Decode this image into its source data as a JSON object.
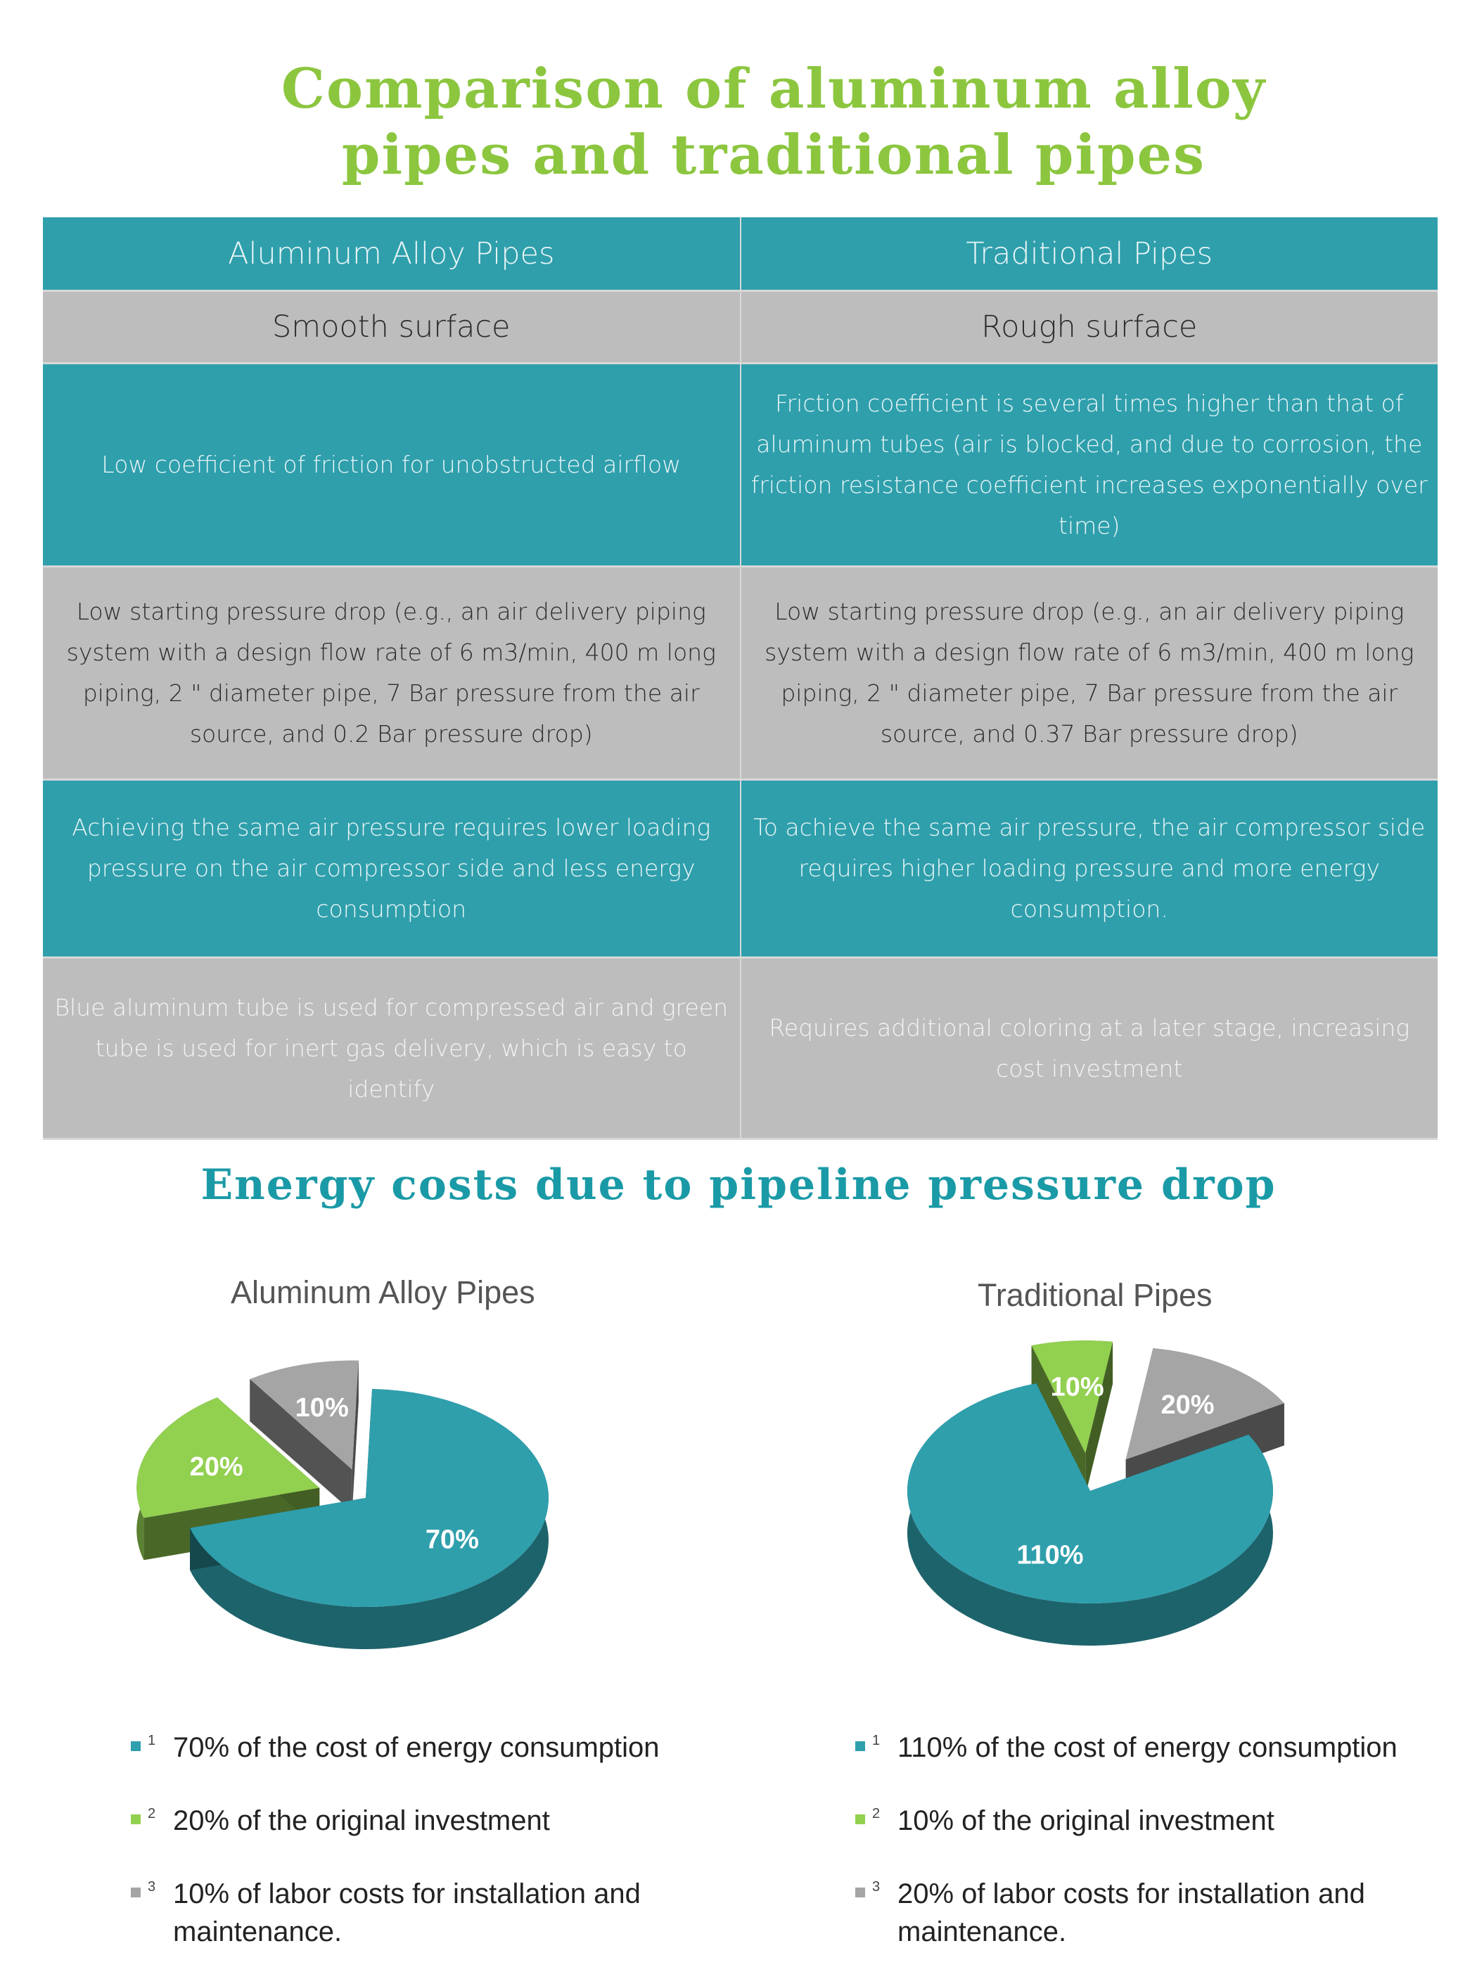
{
  "title": [
    "Comparison of aluminum alloy",
    "pipes and traditional pipes"
  ],
  "table": {
    "headers": [
      "Aluminum Alloy Pipes",
      "Traditional Pipes"
    ],
    "subheaders": [
      "Smooth surface",
      "Rough surface"
    ],
    "rows": [
      [
        "Low coefficient of friction for unobstructed airflow",
        "Friction coefficient is several times higher than that of aluminum tubes (air is blocked, and due to corrosion, the friction resistance coefficient increases exponentially over time)"
      ],
      [
        "Low starting pressure drop (e.g., an air delivery piping system with a design flow rate of 6 m3/min, 400 m long piping, 2 \" diameter pipe, 7 Bar pressure from the air source, and 0.2 Bar pressure drop)",
        "Low starting pressure drop (e.g., an air delivery piping system with a design flow rate of 6 m3/min, 400 m long piping, 2 \" diameter pipe, 7 Bar pressure from the air source, and 0.37 Bar pressure drop)"
      ],
      [
        "Achieving the same air pressure requires lower loading pressure on the air compressor side and less energy consumption",
        "To achieve the same air pressure, the air compressor side requires higher loading pressure and more energy consumption."
      ],
      [
        "Blue aluminum tube is used for compressed air and green tube is used for inert gas delivery, which is easy to identify",
        "Requires additional coloring at a later stage, increasing cost investment"
      ]
    ]
  },
  "section_title": "Energy costs due to pipeline pressure drop",
  "colors": {
    "teal": "#2f9fac",
    "green": "#92d050",
    "gray": "#a5a5a5"
  },
  "chart_data": [
    {
      "type": "pie",
      "title": "Aluminum Alloy Pipes",
      "labels": [
        "70%",
        "20%",
        "10%"
      ],
      "values": [
        70,
        20,
        10
      ],
      "legend": [
        {
          "num": "1",
          "text": "70% of the cost of energy consumption"
        },
        {
          "num": "2",
          "text": "20% of the original investment"
        },
        {
          "num": "3",
          "text": "10% of labor costs for installation and maintenance."
        }
      ]
    },
    {
      "type": "pie",
      "title": "Traditional Pipes",
      "labels": [
        "110%",
        "10%",
        "20%"
      ],
      "values": [
        110,
        10,
        20
      ],
      "legend": [
        {
          "num": "1",
          "text": "110% of the cost of energy consumption"
        },
        {
          "num": "2",
          "text": "10% of the original investment"
        },
        {
          "num": "3",
          "text": "20% of labor costs for installation and maintenance."
        }
      ]
    }
  ]
}
